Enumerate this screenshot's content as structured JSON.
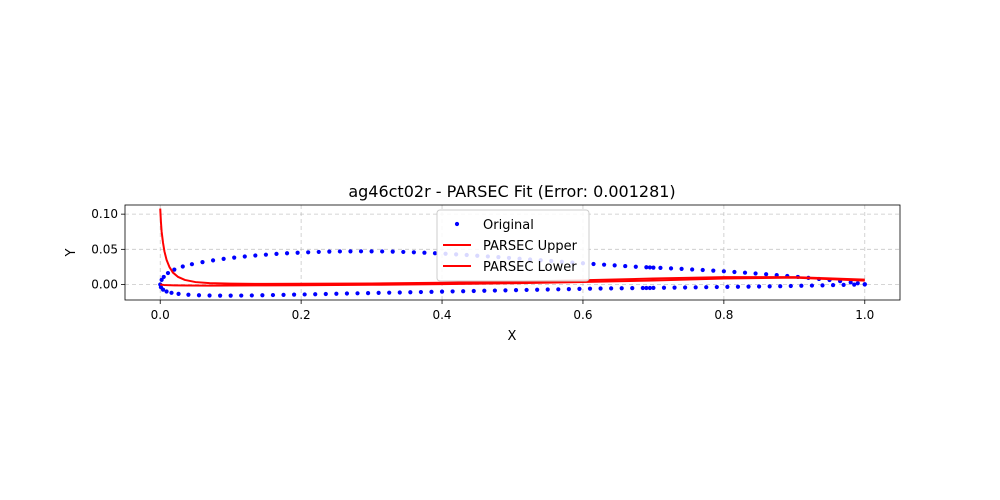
{
  "chart_data": {
    "type": "scatter",
    "title": "ag46ct02r - PARSEC Fit (Error: 0.001281)",
    "xlabel": "X",
    "ylabel": "Y",
    "xlim": [
      -0.05,
      1.05
    ],
    "ylim": [
      -0.022,
      0.113
    ],
    "x_ticks": [
      0.0,
      0.2,
      0.4,
      0.6,
      0.8,
      1.0
    ],
    "x_tick_labels": [
      "0.0",
      "0.2",
      "0.4",
      "0.6",
      "0.8",
      "1.0"
    ],
    "y_ticks": [
      0.0,
      0.05,
      0.1
    ],
    "y_tick_labels": [
      "0.00",
      "0.05",
      "0.10"
    ],
    "grid": true,
    "legend_position": "top-center",
    "series": [
      {
        "name": "Original",
        "kind": "scatter",
        "color": "#0000ff",
        "x": [
          1.0,
          0.99,
          0.98,
          0.965,
          0.95,
          0.935,
          0.92,
          0.905,
          0.89,
          0.875,
          0.86,
          0.845,
          0.83,
          0.815,
          0.8,
          0.785,
          0.77,
          0.755,
          0.74,
          0.725,
          0.71,
          0.7,
          0.695,
          0.69,
          0.675,
          0.66,
          0.645,
          0.63,
          0.615,
          0.6,
          0.585,
          0.57,
          0.555,
          0.54,
          0.525,
          0.51,
          0.495,
          0.48,
          0.465,
          0.45,
          0.435,
          0.42,
          0.405,
          0.39,
          0.375,
          0.36,
          0.345,
          0.33,
          0.315,
          0.3,
          0.285,
          0.27,
          0.255,
          0.24,
          0.225,
          0.21,
          0.195,
          0.18,
          0.165,
          0.15,
          0.135,
          0.12,
          0.105,
          0.09,
          0.075,
          0.06,
          0.045,
          0.032,
          0.02,
          0.011,
          0.005,
          0.002,
          0.0,
          0.001,
          0.004,
          0.009,
          0.016,
          0.026,
          0.04,
          0.055,
          0.07,
          0.085,
          0.1,
          0.115,
          0.13,
          0.145,
          0.16,
          0.175,
          0.19,
          0.205,
          0.22,
          0.235,
          0.25,
          0.265,
          0.28,
          0.295,
          0.31,
          0.325,
          0.34,
          0.355,
          0.37,
          0.385,
          0.4,
          0.415,
          0.43,
          0.445,
          0.46,
          0.475,
          0.49,
          0.505,
          0.52,
          0.535,
          0.55,
          0.565,
          0.58,
          0.595,
          0.61,
          0.625,
          0.64,
          0.655,
          0.67,
          0.685,
          0.69,
          0.695,
          0.7,
          0.715,
          0.73,
          0.745,
          0.76,
          0.775,
          0.79,
          0.805,
          0.82,
          0.835,
          0.85,
          0.865,
          0.88,
          0.895,
          0.91,
          0.925,
          0.94,
          0.955,
          0.97,
          0.985,
          1.0
        ],
        "y": [
          0.0005,
          0.0018,
          0.0031,
          0.0048,
          0.0064,
          0.0079,
          0.0094,
          0.0108,
          0.0121,
          0.0134,
          0.0146,
          0.0157,
          0.0168,
          0.0178,
          0.0188,
          0.0197,
          0.0206,
          0.0214,
          0.0222,
          0.0229,
          0.0236,
          0.024,
          0.0243,
          0.0245,
          0.0253,
          0.0262,
          0.0272,
          0.0282,
          0.0292,
          0.0302,
          0.0312,
          0.0323,
          0.0334,
          0.0345,
          0.0356,
          0.0367,
          0.0378,
          0.0389,
          0.0399,
          0.0409,
          0.0419,
          0.0428,
          0.0437,
          0.0445,
          0.0452,
          0.0458,
          0.0463,
          0.0467,
          0.047,
          0.0471,
          0.0472,
          0.0471,
          0.047,
          0.0467,
          0.0463,
          0.0458,
          0.0451,
          0.0444,
          0.0435,
          0.0424,
          0.0412,
          0.0398,
          0.0382,
          0.0364,
          0.0343,
          0.0318,
          0.0289,
          0.0256,
          0.0212,
          0.0163,
          0.0108,
          0.0066,
          0.0,
          -0.0038,
          -0.0073,
          -0.0099,
          -0.0118,
          -0.0133,
          -0.0145,
          -0.0152,
          -0.0156,
          -0.0158,
          -0.0158,
          -0.0157,
          -0.0155,
          -0.0153,
          -0.015,
          -0.0147,
          -0.0144,
          -0.0141,
          -0.0138,
          -0.0135,
          -0.0131,
          -0.0128,
          -0.0125,
          -0.0122,
          -0.0119,
          -0.0116,
          -0.0113,
          -0.011,
          -0.0107,
          -0.0104,
          -0.0101,
          -0.0098,
          -0.0095,
          -0.0092,
          -0.0089,
          -0.0086,
          -0.0083,
          -0.008,
          -0.0077,
          -0.0074,
          -0.0071,
          -0.0068,
          -0.0065,
          -0.0062,
          -0.0059,
          -0.0057,
          -0.0055,
          -0.0053,
          -0.0051,
          -0.005,
          -0.0049,
          -0.0049,
          -0.0048,
          -0.0046,
          -0.0044,
          -0.0042,
          -0.004,
          -0.0038,
          -0.0036,
          -0.0034,
          -0.0032,
          -0.003,
          -0.0028,
          -0.0026,
          -0.0024,
          -0.0021,
          -0.0018,
          -0.0015,
          -0.0012,
          -0.0008,
          -0.0005,
          -0.0002,
          0.0
        ]
      },
      {
        "name": "PARSEC Upper",
        "kind": "line",
        "color": "#ff0000",
        "x": [
          0.0,
          0.001,
          0.002,
          0.004,
          0.006,
          0.009,
          0.013,
          0.018,
          0.025,
          0.035,
          0.05,
          0.07,
          0.1,
          0.15,
          0.2,
          0.3,
          0.4,
          0.5,
          0.6,
          0.7,
          0.8,
          0.9,
          1.0
        ],
        "y": [
          0.108,
          0.089,
          0.075,
          0.059,
          0.047,
          0.035,
          0.025,
          0.017,
          0.011,
          0.0065,
          0.0035,
          0.002,
          0.0012,
          0.0009,
          0.001,
          0.0015,
          0.0025,
          0.004,
          0.006,
          0.0085,
          0.0105,
          0.0105,
          0.007
        ]
      },
      {
        "name": "PARSEC Lower",
        "kind": "line",
        "color": "#ff0000",
        "x": [
          0.0,
          0.002,
          0.005,
          0.01,
          0.02,
          0.04,
          0.07,
          0.1,
          0.15,
          0.2,
          0.3,
          0.4,
          0.5,
          0.6,
          0.7,
          0.8,
          0.9,
          1.0
        ],
        "y": [
          0.0,
          -0.0003,
          -0.0006,
          -0.0009,
          -0.0012,
          -0.0014,
          -0.0015,
          -0.0014,
          -0.0012,
          -0.001,
          -0.0004,
          0.0005,
          0.0018,
          0.0035,
          0.0058,
          0.0085,
          0.0098,
          0.0055
        ]
      }
    ]
  }
}
